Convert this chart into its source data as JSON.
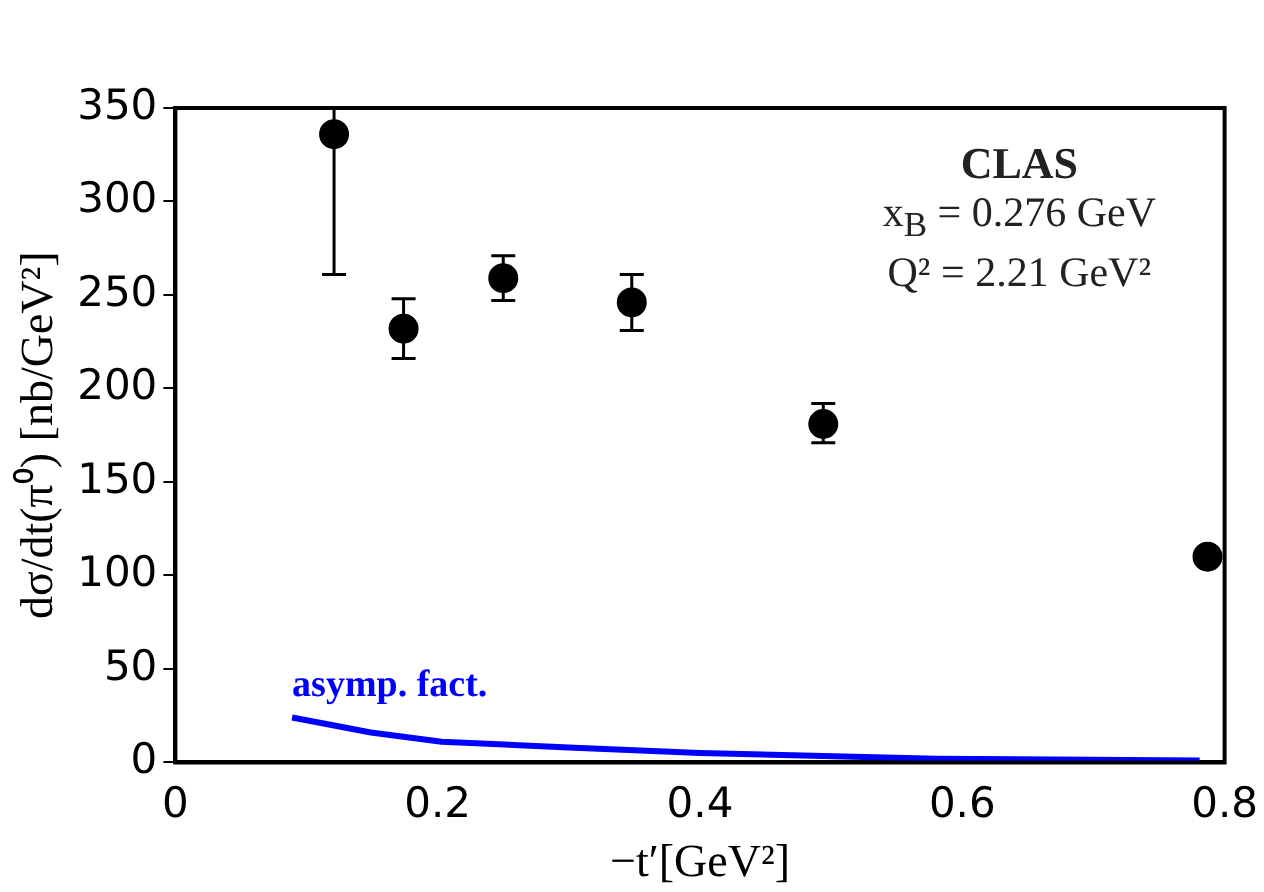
{
  "chart_data": {
    "type": "scatter",
    "xlabel": "−t′[GeV²]",
    "ylabel": "dσ/dt(π⁰) [nb/GeV²]",
    "annotations": [
      "CLAS",
      "x$_{B}$ = 0.276 GeV",
      "Q² = 2.21 GeV²"
    ],
    "xlim": [
      0,
      0.8
    ],
    "xticks": [
      0,
      0.2,
      0.4,
      0.6,
      0.8
    ],
    "ylim": [
      0,
      350
    ],
    "yticks": [
      0,
      50,
      100,
      150,
      200,
      250,
      300,
      350
    ],
    "grid": false,
    "legend": false,
    "series": [
      {
        "marker": "circle",
        "color": "#000000",
        "x": [
          0.121,
          0.174,
          0.25,
          0.348,
          0.494,
          0.787
        ],
        "values": [
          336,
          232,
          259,
          246,
          181,
          110
        ],
        "errors": [
          [
            261,
            350
          ],
          16,
          12,
          15,
          [
            171,
            192
          ],
          null
        ]
      },
      {
        "type": "line",
        "marker": "none",
        "name": "asymp. fact.",
        "color": "#0000ff",
        "x": [
          0.089,
          0.149,
          0.203,
          0.3,
          0.4,
          0.58,
          0.781
        ],
        "values": [
          24,
          16,
          11,
          8,
          5,
          2,
          1
        ]
      }
    ]
  }
}
